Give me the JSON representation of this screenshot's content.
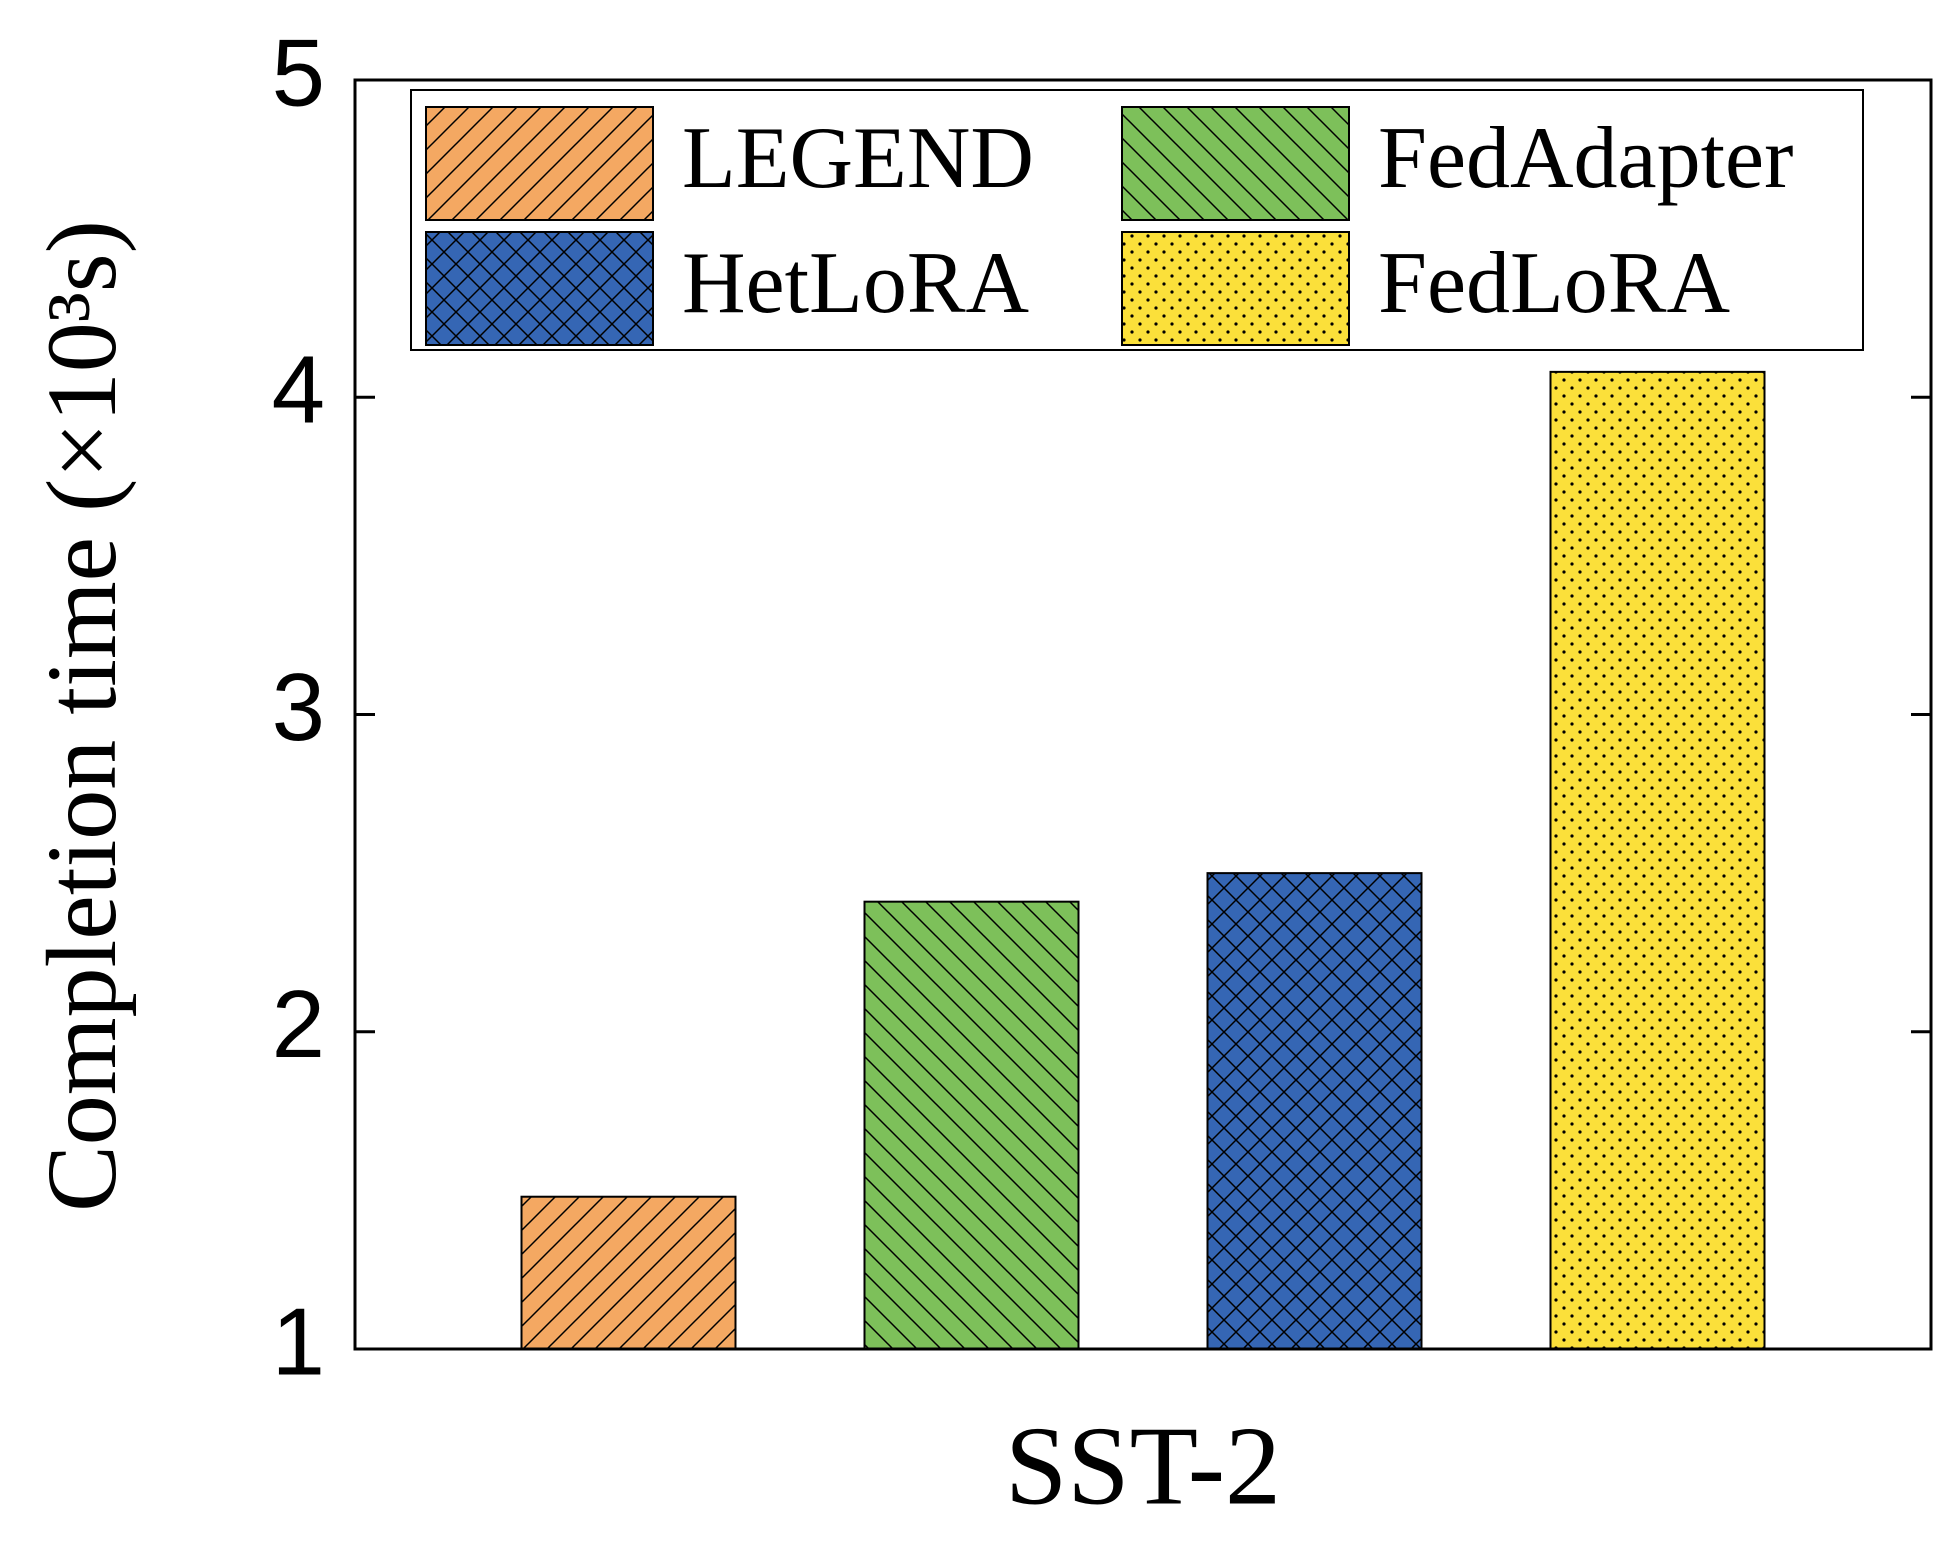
{
  "chart_data": {
    "type": "bar",
    "x_label": "SST-2",
    "y_label": "Completion time (×10³s)",
    "categories": [
      "SST-2"
    ],
    "series": [
      {
        "name": "LEGEND",
        "color": "#f4a862",
        "hatch": "/",
        "values": [
          1.48
        ]
      },
      {
        "name": "FedAdapter",
        "color": "#7dc05a",
        "hatch": "\\",
        "values": [
          2.41
        ]
      },
      {
        "name": "HetLoRA",
        "color": "#3566b4",
        "hatch": "x",
        "values": [
          2.5
        ]
      },
      {
        "name": "FedLoRA",
        "color": "#fbe03a",
        "hatch": ".",
        "values": [
          4.08
        ]
      }
    ],
    "ylim": [
      1,
      5
    ],
    "yticks": [
      1,
      2,
      3,
      4,
      5
    ],
    "grid": false,
    "legend": "top"
  }
}
